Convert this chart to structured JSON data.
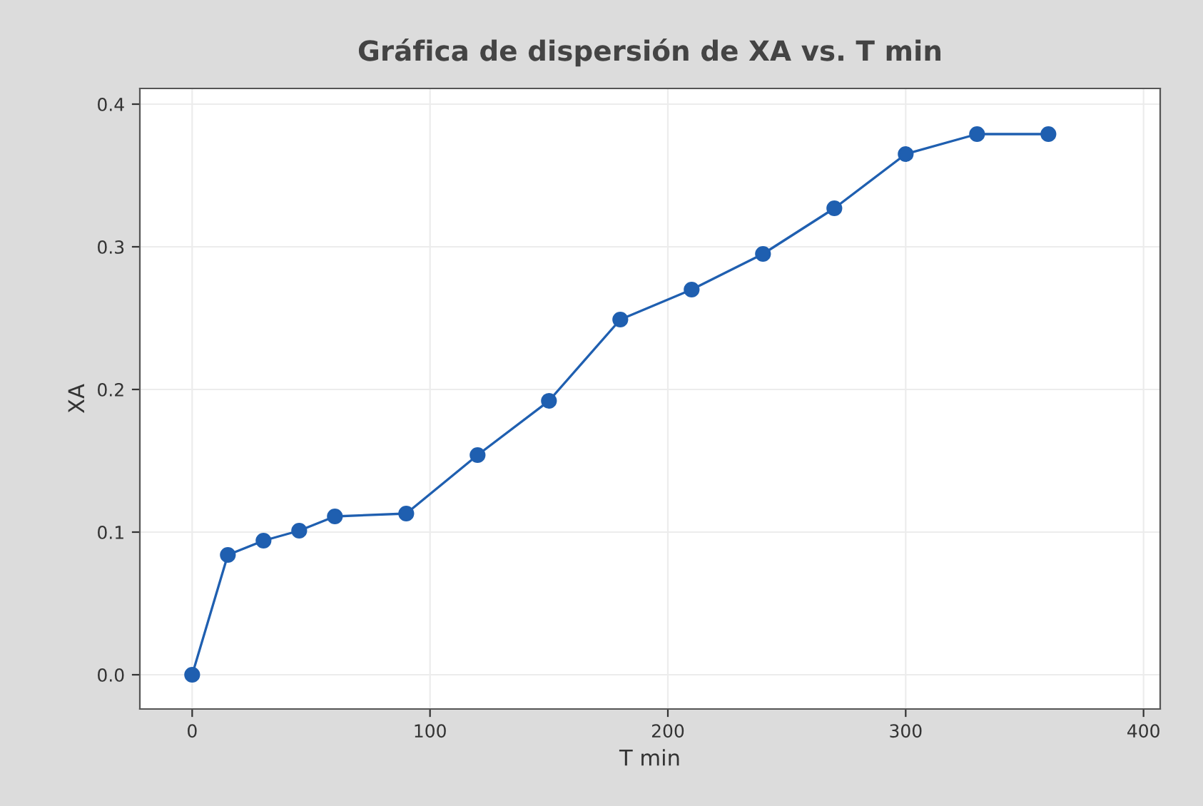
{
  "chart_data": {
    "type": "line",
    "title": "Gráfica de dispersión de XA vs. T min",
    "xlabel": "T min",
    "ylabel": "XA",
    "x": [
      0,
      15,
      30,
      45,
      60,
      90,
      120,
      150,
      180,
      210,
      240,
      270,
      300,
      330,
      360
    ],
    "series": [
      {
        "color": "#1f5fb0",
        "values": [
          0.0,
          0.084,
          0.094,
          0.101,
          0.111,
          0.113,
          0.154,
          0.192,
          0.249,
          0.27,
          0.295,
          0.327,
          0.365,
          0.379,
          0.379
        ]
      }
    ],
    "xlim": [
      -22,
      407
    ],
    "ylim": [
      -0.024,
      0.411
    ],
    "xticks": [
      0,
      100,
      200,
      300,
      400
    ],
    "yticks": [
      {
        "value": 0.0,
        "label": "0.0"
      },
      {
        "value": 0.1,
        "label": "0.1"
      },
      {
        "value": 0.2,
        "label": "0.2"
      },
      {
        "value": 0.3,
        "label": "0.3"
      },
      {
        "value": 0.4,
        "label": "0.4"
      }
    ],
    "grid": true,
    "marker": "circle",
    "line_style": "solid",
    "legend": false
  }
}
